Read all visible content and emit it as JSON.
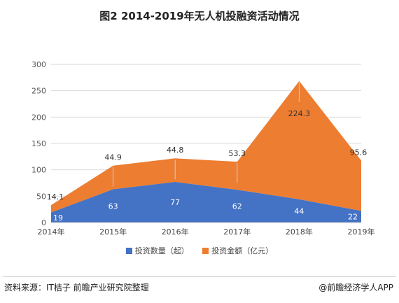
{
  "title": "图2 2014-2019年无人机投融资活动情况",
  "footer": {
    "source": "资料来源：IT桔子  前瞻产业研究院整理",
    "brand": "@前瞻经济学人APP"
  },
  "chart_data": {
    "type": "area",
    "stacked": true,
    "categories": [
      "2014年",
      "2015年",
      "2016年",
      "2017年",
      "2018年",
      "2019年"
    ],
    "ylim": [
      0,
      300
    ],
    "yticks": [
      0,
      50,
      100,
      150,
      200,
      250,
      300
    ],
    "grid": true,
    "legend_position": "bottom",
    "series": [
      {
        "name": "投资数量（起）",
        "values": [
          19,
          63,
          77,
          62,
          44,
          22
        ],
        "color": "#4472c4",
        "labels": [
          "19",
          "63",
          "77",
          "62",
          "44",
          "22"
        ]
      },
      {
        "name": "投资金额（亿元）",
        "values": [
          14.1,
          44.9,
          44.8,
          53.3,
          224.3,
          95.6
        ],
        "color": "#ed7d31",
        "labels": [
          "14.1",
          "44.9",
          "44.8",
          "53.3",
          "224.3",
          "95.6"
        ]
      }
    ]
  }
}
